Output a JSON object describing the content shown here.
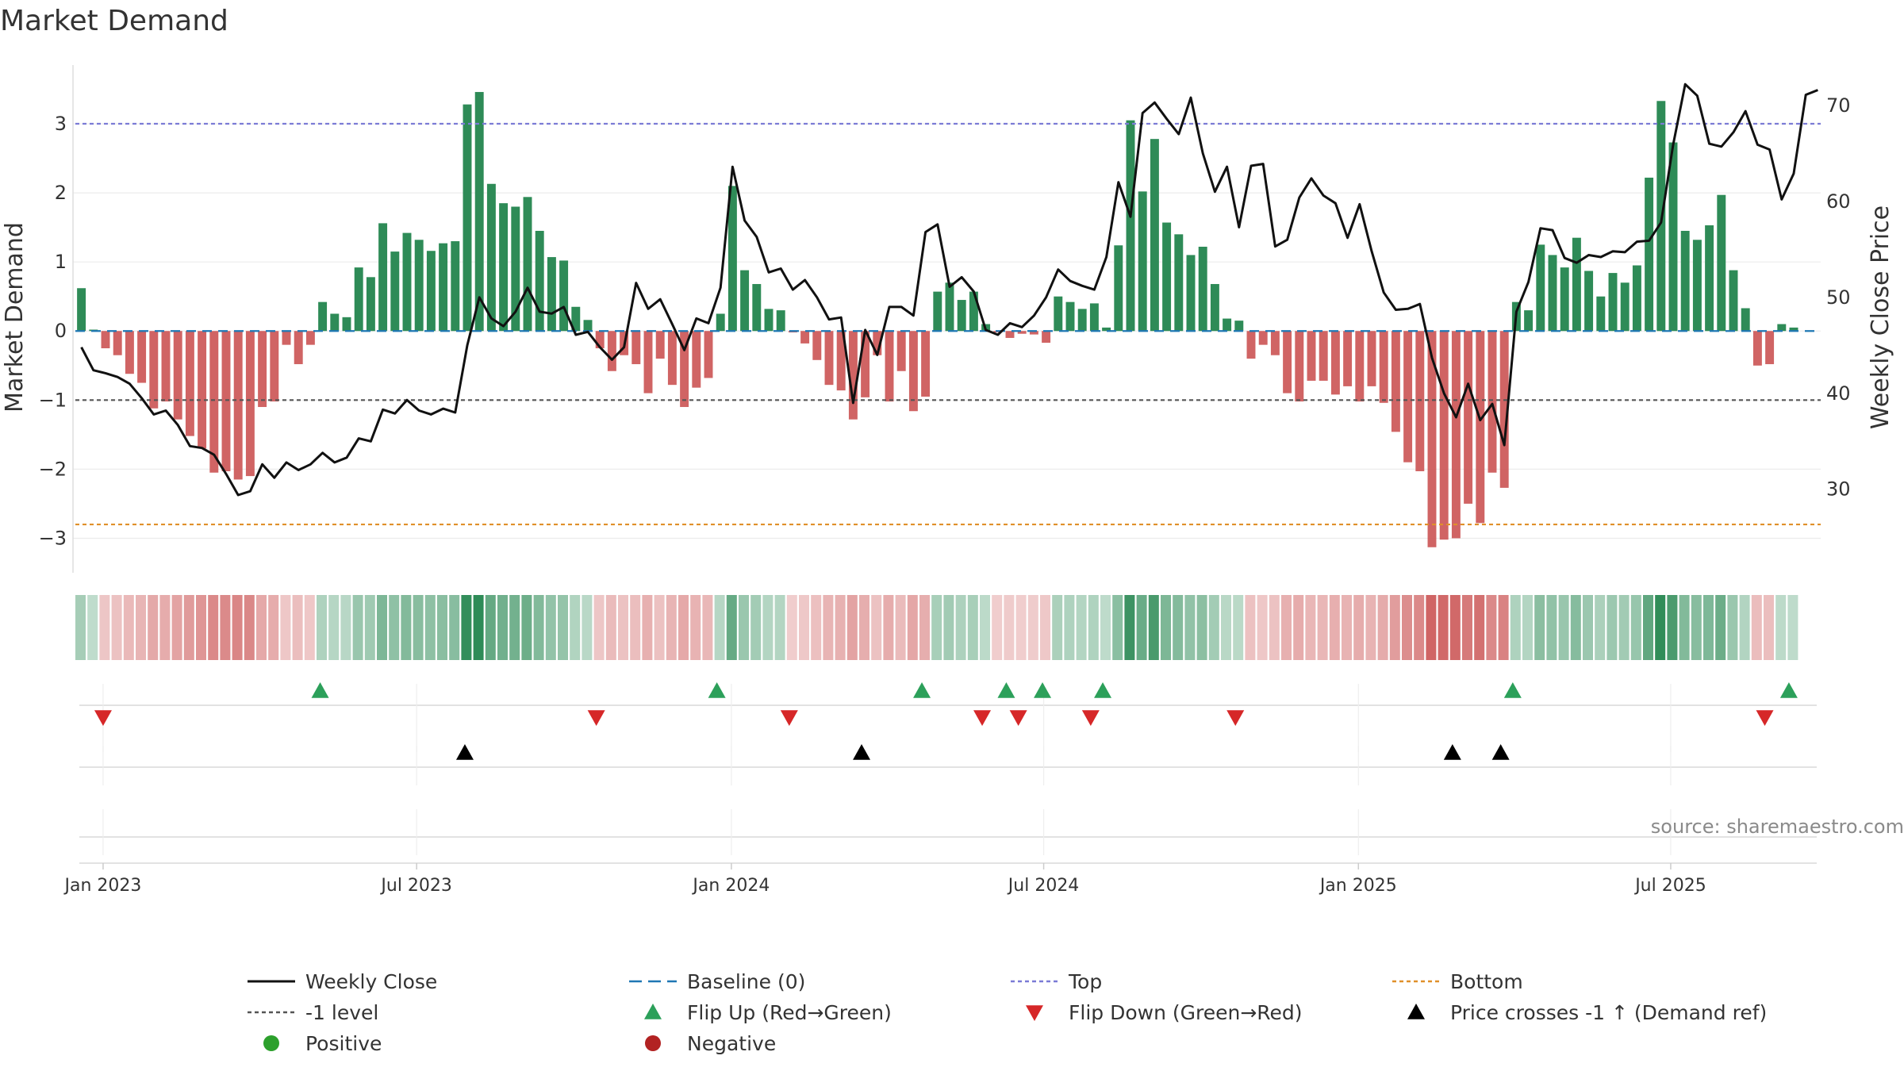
{
  "chart_data": {
    "type": "bar+line",
    "title": "Market Demand",
    "ylabel_left": "Market Demand",
    "ylabel_right": "Weekly Close Price",
    "source": "source: sharemaestro.com",
    "left_ylim": [
      -3.5,
      3.85
    ],
    "right_ylim": [
      21.3,
      74.2
    ],
    "left_ticks": [
      "3",
      "2",
      "1",
      "0",
      "−1",
      "−2",
      "−3"
    ],
    "left_tick_values": [
      3,
      2,
      1,
      0,
      -1,
      -2,
      -3
    ],
    "right_ticks": [
      "70",
      "60",
      "50",
      "40",
      "30"
    ],
    "right_tick_values": [
      70,
      60,
      50,
      40,
      30
    ],
    "x_ticks": [
      "Jan 2023",
      "Jul 2023",
      "Jan 2024",
      "Jul 2024",
      "Jan 2025",
      "Jul 2025"
    ],
    "x_tick_weeks": [
      2.3,
      28.3,
      54.4,
      80.3,
      106.4,
      132.3
    ],
    "reference_lines": {
      "top": 3,
      "bottom": -2.8,
      "minus_one": -1,
      "baseline": 0
    },
    "series": [
      {
        "name": "Market Demand (weekly bars)",
        "values": [
          0.62,
          0.02,
          -0.25,
          -0.35,
          -0.62,
          -0.75,
          -1.12,
          -1.02,
          -1.28,
          -1.52,
          -1.7,
          -2.05,
          -2.03,
          -2.15,
          -2.1,
          -1.1,
          -1.02,
          -0.2,
          -0.48,
          -0.2,
          0.42,
          0.25,
          0.2,
          0.92,
          0.78,
          1.56,
          1.15,
          1.42,
          1.32,
          1.16,
          1.27,
          1.3,
          3.28,
          3.46,
          2.13,
          1.85,
          1.8,
          1.94,
          1.45,
          1.07,
          1.02,
          0.35,
          0.16,
          -0.25,
          -0.58,
          -0.35,
          -0.48,
          -0.9,
          -0.4,
          -0.78,
          -1.1,
          -0.82,
          -0.68,
          0.25,
          2.1,
          0.88,
          0.68,
          0.32,
          0.3,
          -0.02,
          -0.18,
          -0.42,
          -0.78,
          -0.86,
          -1.28,
          -0.96,
          -0.35,
          -1.02,
          -0.58,
          -1.16,
          -0.95,
          0.57,
          0.7,
          0.45,
          0.57,
          0.1,
          -0.02,
          -0.1,
          -0.04,
          -0.05,
          -0.17,
          0.5,
          0.42,
          0.32,
          0.4,
          0.05,
          1.24,
          3.05,
          2.02,
          2.78,
          1.57,
          1.4,
          1.1,
          1.22,
          0.68,
          0.18,
          0.15,
          -0.4,
          -0.2,
          -0.35,
          -0.9,
          -1.02,
          -0.72,
          -0.72,
          -0.92,
          -0.8,
          -1.02,
          -0.8,
          -1.04,
          -1.46,
          -1.9,
          -2.03,
          -3.13,
          -3.02,
          -3.0,
          -2.5,
          -2.78,
          -2.05,
          -2.27,
          0.42,
          0.3,
          1.25,
          1.1,
          0.92,
          1.35,
          0.87,
          0.5,
          0.84,
          0.7,
          0.95,
          2.22,
          3.33,
          2.73,
          1.45,
          1.32,
          1.53,
          1.97,
          0.88,
          0.33,
          -0.5,
          -0.48,
          0.1,
          0.05
        ]
      },
      {
        "name": "Weekly Close",
        "values": [
          44.8,
          42.4,
          42.1,
          41.7,
          41.0,
          39.5,
          37.8,
          38.2,
          36.7,
          34.5,
          34.3,
          33.6,
          31.6,
          29.4,
          29.8,
          32.6,
          31.2,
          32.8,
          32.0,
          32.6,
          33.8,
          32.8,
          33.3,
          35.3,
          35.0,
          38.3,
          37.9,
          39.3,
          38.2,
          37.8,
          38.4,
          38.0,
          45.0,
          50.0,
          47.8,
          47.0,
          48.5,
          51.0,
          48.5,
          48.3,
          49.0,
          46.1,
          46.4,
          44.8,
          43.5,
          44.8,
          51.5,
          48.8,
          49.8,
          47.2,
          44.5,
          47.8,
          47.3,
          51.0,
          63.6,
          58.0,
          56.3,
          52.6,
          53.0,
          50.8,
          51.8,
          50.0,
          47.7,
          47.9,
          39.0,
          46.6,
          44.0,
          49.0,
          49.0,
          48.1,
          56.8,
          57.6,
          51.1,
          52.1,
          50.6,
          46.6,
          46.1,
          47.3,
          46.9,
          48.1,
          50.0,
          52.9,
          51.7,
          51.2,
          50.8,
          54.2,
          62.0,
          58.4,
          69.2,
          70.3,
          68.6,
          67.0,
          70.8,
          65.0,
          61.0,
          63.6,
          57.3,
          63.7,
          63.9,
          55.3,
          56.0,
          60.4,
          62.4,
          60.6,
          59.8,
          56.2,
          59.7,
          54.8,
          50.5,
          48.7,
          48.8,
          49.3,
          43.7,
          40.0,
          37.5,
          41.0,
          37.2,
          38.9,
          34.6,
          48.5,
          51.6,
          57.2,
          57.0,
          54.1,
          53.6,
          54.4,
          54.2,
          54.8,
          54.7,
          55.8,
          55.9,
          57.8,
          65.9,
          72.2,
          71.0,
          66.0,
          65.7,
          67.2,
          69.4,
          65.9,
          65.4,
          60.2,
          62.9,
          71.1,
          71.6
        ]
      }
    ],
    "signal_rows": {
      "flip_up_weeks": [
        20.3,
        53.2,
        70.2,
        77.2,
        80.2,
        85.2,
        119.2,
        142.1
      ],
      "flip_down_weeks": [
        2.3,
        43.2,
        59.2,
        75.2,
        78.2,
        84.2,
        96.2,
        140.1
      ],
      "price_cross_weeks": [
        32.3,
        65.2,
        114.2,
        118.2
      ]
    }
  },
  "legend": {
    "items": [
      {
        "key": "weekly_close",
        "label": "Weekly Close",
        "marker": "line-solid-black"
      },
      {
        "key": "baseline",
        "label": "Baseline (0)",
        "marker": "line-dashed-blue"
      },
      {
        "key": "top",
        "label": "Top",
        "marker": "line-dotted-purple"
      },
      {
        "key": "bottom",
        "label": "Bottom",
        "marker": "line-dotted-orange"
      },
      {
        "key": "minus_one",
        "label": "-1 level",
        "marker": "line-dotted-gray"
      },
      {
        "key": "flip_up",
        "label": "Flip Up (Red→Green)",
        "marker": "triangle-up-green"
      },
      {
        "key": "flip_down",
        "label": "Flip Down (Green→Red)",
        "marker": "triangle-down-red"
      },
      {
        "key": "price_cross",
        "label": "Price crosses -1 ↑ (Demand ref)",
        "marker": "triangle-up-black"
      },
      {
        "key": "positive",
        "label": "Positive",
        "marker": "circle-green"
      },
      {
        "key": "negative",
        "label": "Negative",
        "marker": "circle-red"
      }
    ]
  },
  "colors": {
    "positive": "#2e8b57",
    "negative": "#cd5c5c",
    "price": "#111111",
    "top": "#7b7bd6",
    "bottom": "#e0902a",
    "minus_one": "#555555",
    "baseline": "#1f77b4",
    "flip_up": "#2ca05a",
    "flip_down": "#d62728",
    "cross": "#000000",
    "legend_positive": "#2ca02c",
    "legend_negative": "#b22222"
  }
}
